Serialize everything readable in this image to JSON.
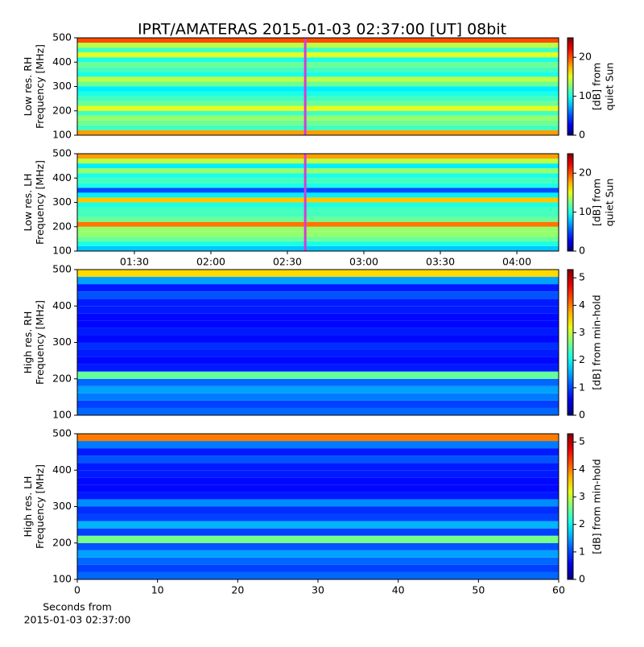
{
  "chart_data": [
    {
      "type": "heatmap",
      "title": "IPRT/AMATERAS 2015-01-03 02:37:00 [UT]   08bit",
      "ylabel": [
        "Low res. RH",
        "Frequency [MHz]"
      ],
      "ylim": [
        100,
        500
      ],
      "yticks": [
        100,
        200,
        300,
        400,
        500
      ],
      "xlim": [
        67.6,
        256.4
      ],
      "y_bins": [
        100,
        120,
        140,
        160,
        180,
        200,
        220,
        240,
        260,
        280,
        300,
        320,
        340,
        360,
        380,
        400,
        420,
        440,
        460,
        480,
        500
      ],
      "values": [
        18,
        11,
        12,
        13,
        11,
        15,
        12,
        11,
        10,
        9,
        12,
        14,
        10,
        11,
        12,
        10,
        15,
        11,
        14,
        20
      ],
      "clabel": [
        "[dB] from",
        "quiet Sun"
      ],
      "clim": [
        0,
        25
      ],
      "cticks": [
        0,
        10,
        20
      ],
      "marker_x": 157,
      "marker_color": "#d63cd6"
    },
    {
      "type": "heatmap",
      "ylabel": [
        "Low res. LH",
        "Frequency [MHz]"
      ],
      "ylim": [
        100,
        500
      ],
      "yticks": [
        100,
        200,
        300,
        400,
        500
      ],
      "xlim": [
        67.6,
        256.4
      ],
      "xticks": [
        {
          "value": 90,
          "label": "01:30"
        },
        {
          "value": 120,
          "label": "02:00"
        },
        {
          "value": 150,
          "label": "02:30"
        },
        {
          "value": 180,
          "label": "03:00"
        },
        {
          "value": 210,
          "label": "03:30"
        },
        {
          "value": 240,
          "label": "04:00"
        }
      ],
      "y_bins": [
        100,
        120,
        140,
        160,
        180,
        200,
        220,
        240,
        260,
        280,
        300,
        320,
        340,
        360,
        380,
        400,
        420,
        440,
        460,
        480,
        500
      ],
      "values": [
        8,
        10,
        12,
        13,
        13,
        19,
        12,
        11,
        11,
        10,
        17,
        9,
        5,
        10,
        11,
        10,
        13,
        9,
        14,
        18
      ],
      "clabel": [
        "[dB] from",
        "quiet Sun"
      ],
      "clim": [
        0,
        25
      ],
      "cticks": [
        0,
        10,
        20
      ],
      "marker_x": 157,
      "marker_color": "#d63cd6"
    },
    {
      "type": "heatmap",
      "ylabel": [
        "High res. RH",
        "Frequency [MHz]"
      ],
      "ylim": [
        100,
        500
      ],
      "yticks": [
        100,
        200,
        300,
        400,
        500
      ],
      "xlim": [
        0,
        60
      ],
      "y_bins": [
        100,
        120,
        140,
        160,
        180,
        200,
        220,
        240,
        260,
        280,
        300,
        320,
        340,
        360,
        380,
        400,
        420,
        440,
        460,
        480,
        500
      ],
      "values": [
        1.2,
        1.0,
        1.3,
        1.5,
        1.2,
        2.5,
        0.8,
        0.7,
        0.8,
        0.9,
        0.7,
        0.8,
        0.7,
        0.7,
        0.8,
        0.8,
        1.1,
        0.8,
        1.5,
        3.5
      ],
      "clabel": [
        "[dB] from min-hold"
      ],
      "clim": [
        0,
        5.3
      ],
      "cticks": [
        0,
        1,
        2,
        3,
        4,
        5
      ]
    },
    {
      "type": "heatmap",
      "ylabel": [
        "High res. LH",
        "Frequency [MHz]"
      ],
      "ylim": [
        100,
        500
      ],
      "yticks": [
        100,
        200,
        300,
        400,
        500
      ],
      "xlim": [
        0,
        60
      ],
      "xticks": [
        0,
        10,
        20,
        30,
        40,
        50,
        60
      ],
      "xlabel": [
        "Seconds from",
        "2015-01-03 02:37:00"
      ],
      "y_bins": [
        100,
        120,
        140,
        160,
        180,
        200,
        220,
        240,
        260,
        280,
        300,
        320,
        340,
        360,
        380,
        400,
        420,
        440,
        460,
        480,
        500
      ],
      "values": [
        1.2,
        1.0,
        1.2,
        1.5,
        1.1,
        2.6,
        1.0,
        1.6,
        1.0,
        0.9,
        1.4,
        0.8,
        0.7,
        0.7,
        0.8,
        0.8,
        1.1,
        0.8,
        1.3,
        4.0
      ],
      "clabel": [
        "[dB] from min-hold"
      ],
      "clim": [
        0,
        5.3
      ],
      "cticks": [
        0,
        1,
        2,
        3,
        4,
        5
      ]
    }
  ]
}
